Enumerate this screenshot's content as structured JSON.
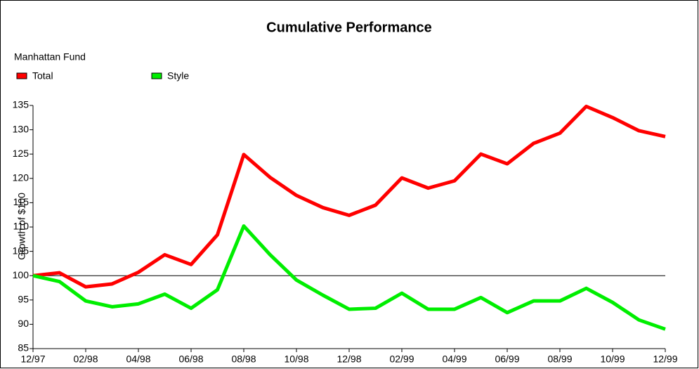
{
  "chart_data": {
    "type": "line",
    "title": "Cumulative Performance",
    "subtitle": "Manhattan Fund",
    "y_label": "Growth of $100",
    "categories": [
      "12/97",
      null,
      "02/98",
      null,
      "04/98",
      null,
      "06/98",
      null,
      "08/98",
      null,
      "10/98",
      null,
      "12/98",
      null,
      "02/99",
      null,
      "04/99",
      null,
      "06/99",
      null,
      "08/99",
      null,
      "10/99",
      null,
      "12/99"
    ],
    "series": [
      {
        "name": "Total",
        "color": "#ff0000",
        "values": [
          100,
          100.6,
          97.7,
          98.3,
          100.7,
          104.3,
          102.3,
          108.4,
          124.9,
          120.2,
          116.5,
          114,
          112.4,
          114.5,
          120.1,
          118,
          119.5,
          125,
          123,
          127.2,
          129.3,
          134.8,
          132.5,
          129.8,
          128.6
        ]
      },
      {
        "name": "Style",
        "color": "#00ee00",
        "values": [
          100,
          98.8,
          94.8,
          93.6,
          94.2,
          96.2,
          93.3,
          97.1,
          110.2,
          104.3,
          99.1,
          96,
          93.1,
          93.3,
          96.4,
          93.1,
          93.1,
          95.5,
          92.4,
          94.8,
          94.8,
          97.4,
          94.5,
          90.9,
          89
        ]
      }
    ],
    "reference_line": 100,
    "ylim": [
      85,
      135
    ],
    "yticks": [
      85,
      90,
      95,
      100,
      105,
      110,
      115,
      120,
      125,
      130,
      135
    ],
    "legend": "top-left"
  }
}
